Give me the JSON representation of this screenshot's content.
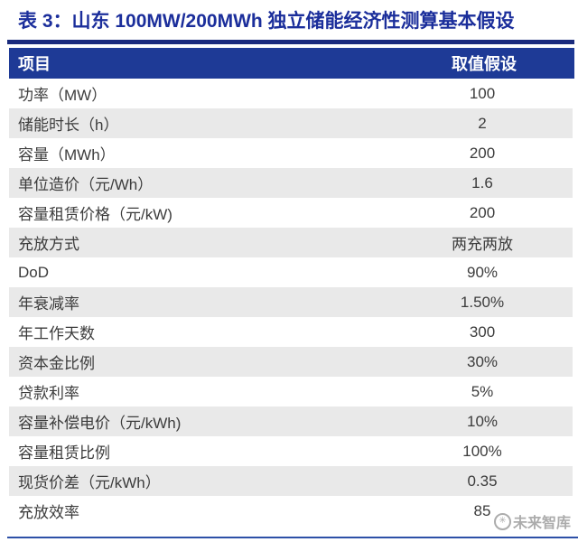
{
  "title": "表 3：山东 100MW/200MWh 独立储能经济性测算基本假设",
  "table": {
    "headers": {
      "item": "项目",
      "value": "取值假设"
    },
    "rows": [
      {
        "label": "功率（MW）",
        "value": "100"
      },
      {
        "label": "储能时长（h）",
        "value": "2"
      },
      {
        "label": "容量（MWh）",
        "value": "200"
      },
      {
        "label": "单位造价（元/Wh）",
        "value": "1.6"
      },
      {
        "label": "容量租赁价格（元/kW)",
        "value": "200"
      },
      {
        "label": "充放方式",
        "value": "两充两放"
      },
      {
        "label": "DoD",
        "value": "90%"
      },
      {
        "label": "年衰减率",
        "value": "1.50%"
      },
      {
        "label": "年工作天数",
        "value": "300"
      },
      {
        "label": "资本金比例",
        "value": "30%"
      },
      {
        "label": "贷款利率",
        "value": "5%"
      },
      {
        "label": "容量补偿电价（元/kWh)",
        "value": "10%"
      },
      {
        "label": "容量租赁比例",
        "value": "100%"
      },
      {
        "label": "现货价差（元/kWh）",
        "value": "0.35"
      },
      {
        "label": "充放效率",
        "value": "85"
      }
    ]
  },
  "watermark": {
    "logo_glyph": "✳",
    "text": "未来智库"
  },
  "colors": {
    "title": "#1b2e9b",
    "rule": "#1a2b7d",
    "header_bg": "#1e3a96",
    "header_text": "#ffffff",
    "row_alt_bg": "#e9e9e9",
    "body_text": "#3c3c3c",
    "bottom_line": "#2d50a7",
    "watermark": "#9e9e9e"
  }
}
